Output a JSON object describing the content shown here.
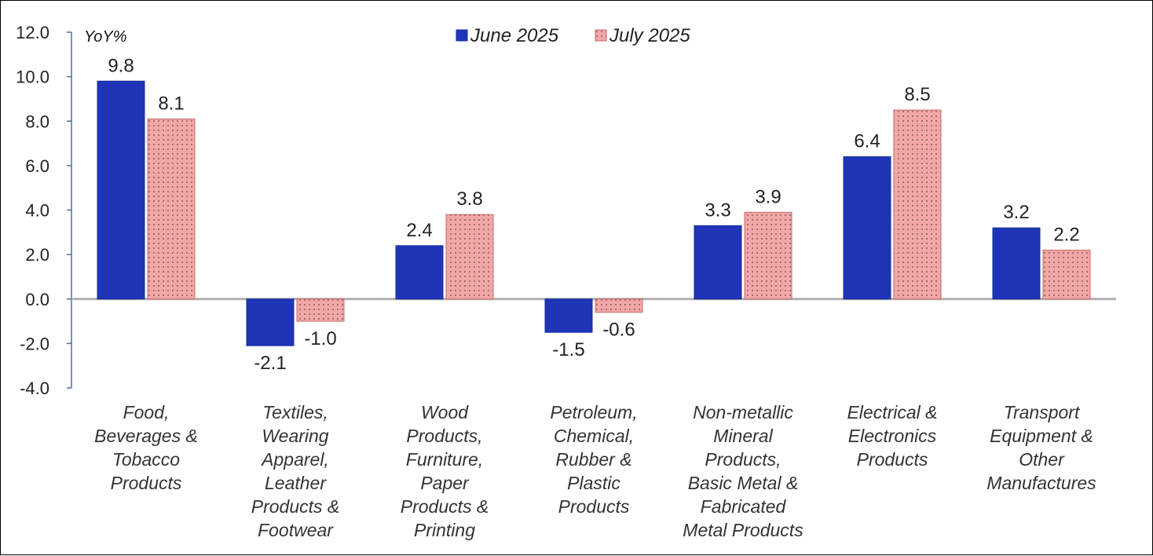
{
  "chart_data": {
    "type": "bar",
    "unit_label": "YoY%",
    "categories": [
      [
        "Food,",
        "Beverages &",
        "Tobacco",
        "Products"
      ],
      [
        "Textiles,",
        "Wearing",
        "Apparel,",
        "Leather",
        "Products &",
        "Footwear"
      ],
      [
        "Wood",
        "Products,",
        "Furniture,",
        "Paper",
        "Products &",
        "Printing"
      ],
      [
        "Petroleum,",
        "Chemical,",
        "Rubber &",
        "Plastic",
        "Products"
      ],
      [
        "Non-metallic",
        "Mineral",
        "Products,",
        "Basic Metal &",
        "Fabricated",
        "Metal Products"
      ],
      [
        "Electrical &",
        "Electronics",
        "Products"
      ],
      [
        "Transport",
        "Equipment &",
        "Other",
        "Manufactures"
      ]
    ],
    "series": [
      {
        "name": "June 2025",
        "color": "#1f35b8",
        "pattern": "solid",
        "values": [
          9.8,
          -2.1,
          2.4,
          -1.5,
          3.3,
          6.4,
          3.2
        ],
        "labels": [
          "9.8",
          "-2.1",
          "2.4",
          "-1.5",
          "3.3",
          "6.4",
          "3.2"
        ]
      },
      {
        "name": "July 2025",
        "color": "#f2a7a7",
        "pattern": "dotted",
        "values": [
          8.1,
          -1.0,
          3.8,
          -0.6,
          3.9,
          8.5,
          2.2
        ],
        "labels": [
          "8.1",
          "-1.0",
          "3.8",
          "-0.6",
          "3.9",
          "8.5",
          "2.2"
        ]
      }
    ],
    "ylim": [
      -4.0,
      12.0
    ],
    "yticks": [
      12.0,
      10.0,
      8.0,
      6.0,
      4.0,
      2.0,
      0.0,
      -2.0,
      -4.0
    ],
    "ytick_labels": [
      "12.0",
      "10.0",
      "8.0",
      "6.0",
      "4.0",
      "2.0",
      "0.0",
      "-2.0",
      "-4.0"
    ],
    "legend_position": "top-center",
    "grid": false
  }
}
